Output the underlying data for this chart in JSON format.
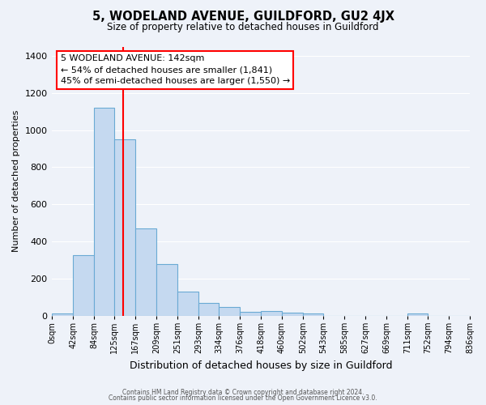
{
  "title": "5, WODELAND AVENUE, GUILDFORD, GU2 4JX",
  "subtitle": "Size of property relative to detached houses in Guildford",
  "xlabel": "Distribution of detached houses by size in Guildford",
  "ylabel": "Number of detached properties",
  "bar_color": "#c5d9f0",
  "bar_edge_color": "#6aaad4",
  "background_color": "#eef2f9",
  "grid_color": "#ffffff",
  "red_line_x": 142,
  "annotation_title": "5 WODELAND AVENUE: 142sqm",
  "annotation_line1": "← 54% of detached houses are smaller (1,841)",
  "annotation_line2": "45% of semi-detached houses are larger (1,550) →",
  "bin_edges": [
    0,
    42,
    84,
    125,
    167,
    209,
    251,
    293,
    334,
    376,
    418,
    460,
    502,
    543,
    585,
    627,
    669,
    711,
    752,
    794,
    836
  ],
  "bar_heights": [
    10,
    325,
    1120,
    950,
    470,
    280,
    130,
    70,
    48,
    20,
    25,
    18,
    10,
    0,
    0,
    0,
    0,
    12,
    0,
    0
  ],
  "tick_labels": [
    "0sqm",
    "42sqm",
    "84sqm",
    "125sqm",
    "167sqm",
    "209sqm",
    "251sqm",
    "293sqm",
    "334sqm",
    "376sqm",
    "418sqm",
    "460sqm",
    "502sqm",
    "543sqm",
    "585sqm",
    "627sqm",
    "669sqm",
    "711sqm",
    "752sqm",
    "794sqm",
    "836sqm"
  ],
  "ylim": [
    0,
    1450
  ],
  "yticks": [
    0,
    200,
    400,
    600,
    800,
    1000,
    1200,
    1400
  ],
  "footer_line1": "Contains HM Land Registry data © Crown copyright and database right 2024.",
  "footer_line2": "Contains public sector information licensed under the Open Government Licence v3.0."
}
